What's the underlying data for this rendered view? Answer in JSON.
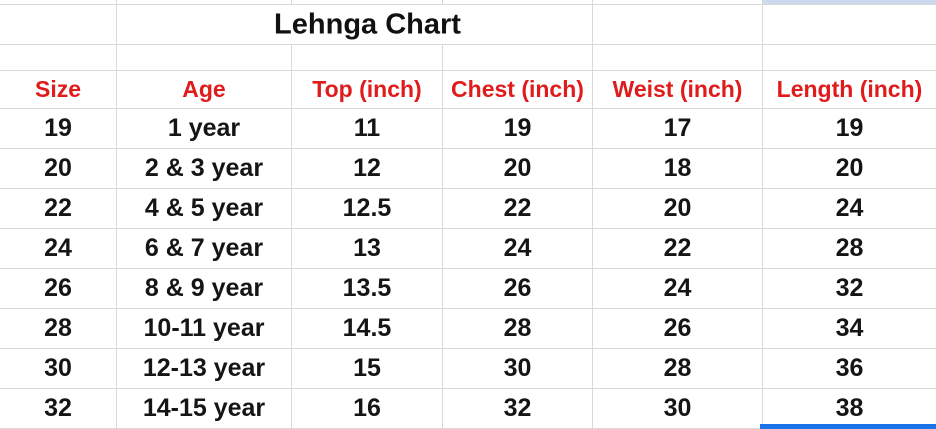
{
  "chart_data": {
    "type": "table",
    "title": "Lehnga Chart",
    "columns": [
      "Size",
      "Age",
      "Top (inch)",
      "Chest (inch)",
      "Weist (inch)",
      "Length (inch)"
    ],
    "rows": [
      [
        "19",
        "1 year",
        "11",
        "19",
        "17",
        "19"
      ],
      [
        "20",
        "2 & 3 year",
        "12",
        "20",
        "18",
        "20"
      ],
      [
        "22",
        "4 & 5 year",
        "12.5",
        "22",
        "20",
        "24"
      ],
      [
        "24",
        "6 & 7 year",
        "13",
        "24",
        "22",
        "28"
      ],
      [
        "26",
        "8 & 9 year",
        "13.5",
        "26",
        "24",
        "32"
      ],
      [
        "28",
        "10-11 year",
        "14.5",
        "28",
        "26",
        "34"
      ],
      [
        "30",
        "12-13 year",
        "15",
        "30",
        "28",
        "36"
      ],
      [
        "32",
        "14-15 year",
        "16",
        "32",
        "30",
        "38"
      ]
    ]
  },
  "colors": {
    "header_text": "#e01b1b",
    "body_text": "#151515",
    "title_text": "#111111",
    "gridline": "#d9d9d9",
    "selection_border": "#1a73e8",
    "selection_fill": "#ccd9ee"
  }
}
